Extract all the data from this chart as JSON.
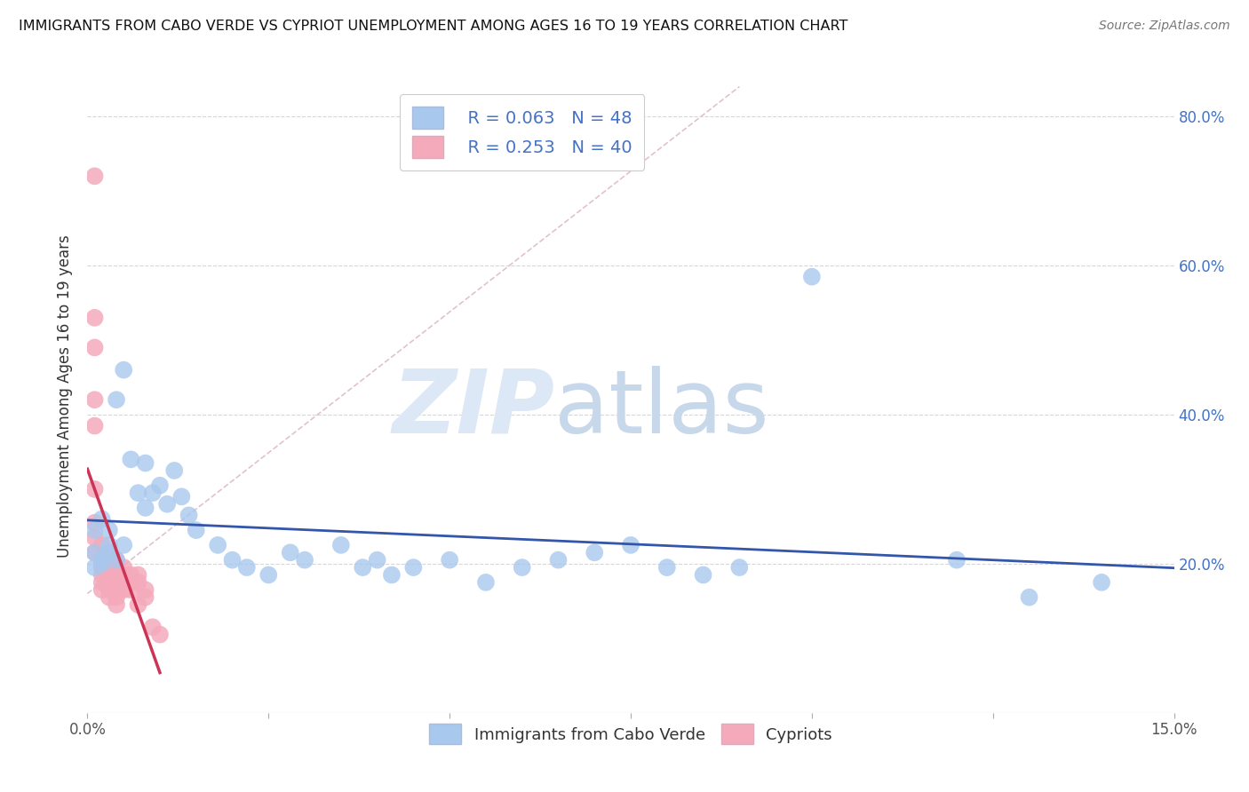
{
  "title": "IMMIGRANTS FROM CABO VERDE VS CYPRIOT UNEMPLOYMENT AMONG AGES 16 TO 19 YEARS CORRELATION CHART",
  "source": "Source: ZipAtlas.com",
  "xlabel_blue": "Immigrants from Cabo Verde",
  "xlabel_pink": "Cypriots",
  "ylabel": "Unemployment Among Ages 16 to 19 years",
  "xmin": 0.0,
  "xmax": 0.15,
  "ymin": 0.0,
  "ymax": 0.85,
  "yticks": [
    0.2,
    0.4,
    0.6,
    0.8
  ],
  "ytick_labels_right": [
    "20.0%",
    "40.0%",
    "60.0%",
    "80.0%"
  ],
  "xticks": [
    0.0,
    0.025,
    0.05,
    0.075,
    0.1,
    0.125,
    0.15
  ],
  "xtick_labels": [
    "0.0%",
    "",
    "",
    "",
    "",
    "",
    "15.0%"
  ],
  "blue_scatter": [
    [
      0.001,
      0.215
    ],
    [
      0.001,
      0.245
    ],
    [
      0.002,
      0.205
    ],
    [
      0.001,
      0.195
    ],
    [
      0.002,
      0.26
    ],
    [
      0.003,
      0.225
    ],
    [
      0.002,
      0.2
    ],
    [
      0.003,
      0.215
    ],
    [
      0.004,
      0.205
    ],
    [
      0.005,
      0.225
    ],
    [
      0.003,
      0.245
    ],
    [
      0.005,
      0.46
    ],
    [
      0.004,
      0.42
    ],
    [
      0.006,
      0.34
    ],
    [
      0.007,
      0.295
    ],
    [
      0.008,
      0.335
    ],
    [
      0.008,
      0.275
    ],
    [
      0.009,
      0.295
    ],
    [
      0.01,
      0.305
    ],
    [
      0.011,
      0.28
    ],
    [
      0.012,
      0.325
    ],
    [
      0.013,
      0.29
    ],
    [
      0.014,
      0.265
    ],
    [
      0.015,
      0.245
    ],
    [
      0.018,
      0.225
    ],
    [
      0.02,
      0.205
    ],
    [
      0.022,
      0.195
    ],
    [
      0.025,
      0.185
    ],
    [
      0.028,
      0.215
    ],
    [
      0.03,
      0.205
    ],
    [
      0.035,
      0.225
    ],
    [
      0.038,
      0.195
    ],
    [
      0.04,
      0.205
    ],
    [
      0.042,
      0.185
    ],
    [
      0.045,
      0.195
    ],
    [
      0.05,
      0.205
    ],
    [
      0.055,
      0.175
    ],
    [
      0.06,
      0.195
    ],
    [
      0.065,
      0.205
    ],
    [
      0.07,
      0.215
    ],
    [
      0.075,
      0.225
    ],
    [
      0.08,
      0.195
    ],
    [
      0.085,
      0.185
    ],
    [
      0.09,
      0.195
    ],
    [
      0.1,
      0.585
    ],
    [
      0.12,
      0.205
    ],
    [
      0.13,
      0.155
    ],
    [
      0.14,
      0.175
    ]
  ],
  "pink_scatter": [
    [
      0.001,
      0.72
    ],
    [
      0.001,
      0.53
    ],
    [
      0.001,
      0.49
    ],
    [
      0.001,
      0.42
    ],
    [
      0.001,
      0.385
    ],
    [
      0.001,
      0.3
    ],
    [
      0.001,
      0.255
    ],
    [
      0.001,
      0.235
    ],
    [
      0.001,
      0.215
    ],
    [
      0.002,
      0.225
    ],
    [
      0.002,
      0.205
    ],
    [
      0.002,
      0.195
    ],
    [
      0.002,
      0.185
    ],
    [
      0.002,
      0.175
    ],
    [
      0.002,
      0.165
    ],
    [
      0.003,
      0.215
    ],
    [
      0.003,
      0.195
    ],
    [
      0.003,
      0.185
    ],
    [
      0.003,
      0.175
    ],
    [
      0.003,
      0.165
    ],
    [
      0.003,
      0.155
    ],
    [
      0.004,
      0.205
    ],
    [
      0.004,
      0.195
    ],
    [
      0.004,
      0.175
    ],
    [
      0.004,
      0.165
    ],
    [
      0.004,
      0.155
    ],
    [
      0.004,
      0.145
    ],
    [
      0.005,
      0.195
    ],
    [
      0.005,
      0.185
    ],
    [
      0.005,
      0.175
    ],
    [
      0.005,
      0.165
    ],
    [
      0.006,
      0.185
    ],
    [
      0.006,
      0.175
    ],
    [
      0.006,
      0.165
    ],
    [
      0.007,
      0.185
    ],
    [
      0.007,
      0.175
    ],
    [
      0.007,
      0.145
    ],
    [
      0.008,
      0.165
    ],
    [
      0.008,
      0.155
    ],
    [
      0.009,
      0.115
    ],
    [
      0.01,
      0.105
    ]
  ],
  "blue_color": "#a8c8ee",
  "pink_color": "#f4aabb",
  "trend_line_color_blue": "#3355aa",
  "trend_line_color_pink": "#cc3355",
  "diag_line_color": "#ddbbcc",
  "watermark_zip_color": "#dce8f5",
  "watermark_atlas_color": "#c8d8eb",
  "background_color": "#ffffff",
  "grid_color": "#cccccc",
  "right_tick_color": "#4472c4",
  "legend_text_color": "#4472c4",
  "legend_label_color": "#222222"
}
